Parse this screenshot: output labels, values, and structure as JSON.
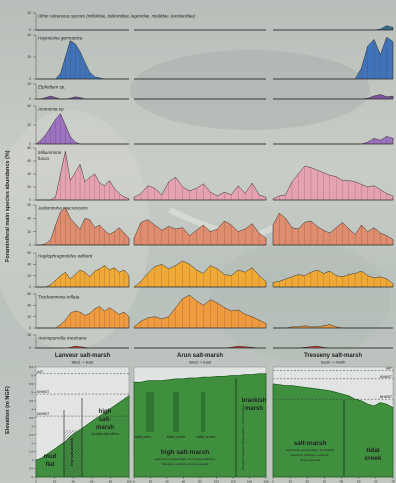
{
  "figure": {
    "y_axis_title": "Foraminiferal main species abundance (%)",
    "elevation_axis_title": "Elevation  (m  NGF)"
  },
  "chart_data": {
    "type": "area",
    "panels": [
      "lanveur",
      "arun",
      "tresseny"
    ],
    "species_rows": [
      {
        "id": "calcareous",
        "name": "Other calcareous species (miliolidae, buliminidae, lagenidae, rotaliidae, textulariidae)",
        "color": "#2e6b8f",
        "ticks": [
          "0",
          "20"
        ],
        "ymax": 20,
        "series": {
          "lanveur": [
            0,
            0,
            0,
            0,
            0,
            0,
            0,
            0,
            0,
            0,
            0,
            0,
            0,
            0,
            0,
            0,
            0,
            0,
            0,
            0
          ],
          "arun": [
            0,
            0,
            0,
            0,
            0,
            0,
            0,
            0,
            0,
            0,
            0,
            0,
            0,
            0,
            0,
            0,
            0,
            0,
            0,
            0
          ],
          "tresseny": [
            0,
            0,
            0,
            0,
            0,
            0,
            0,
            0,
            0,
            0,
            0,
            0,
            0,
            0,
            0,
            0,
            0,
            1,
            5,
            3
          ]
        }
      },
      {
        "id": "haynesina",
        "name": "Haynesina germanica",
        "color": "#3a6fb8",
        "ticks": [
          "0",
          "20",
          "40"
        ],
        "ymax": 40,
        "series": {
          "lanveur": [
            0,
            0,
            0,
            0,
            0,
            5,
            20,
            35,
            32,
            25,
            15,
            6,
            2,
            1,
            0,
            0,
            0,
            0,
            0,
            0
          ],
          "arun": [
            0,
            0,
            0,
            0,
            0,
            0,
            0,
            0,
            0,
            0,
            0,
            0,
            0,
            0,
            0,
            0,
            0,
            0,
            0,
            0
          ],
          "tresseny": [
            0,
            0,
            0,
            0,
            0,
            0,
            0,
            0,
            0,
            0,
            0,
            0,
            0,
            0,
            10,
            30,
            36,
            22,
            38,
            34
          ]
        }
      },
      {
        "id": "elphidium",
        "name": "Elphidium sp.",
        "color": "#7a4fa0",
        "ticks": [
          "0",
          "20"
        ],
        "ymax": 20,
        "series": {
          "lanveur": [
            0,
            0,
            2,
            4,
            2,
            0,
            0,
            1,
            3,
            2,
            0,
            0,
            0,
            0,
            0,
            0,
            0,
            0,
            0,
            0
          ],
          "arun": [
            0,
            0,
            0,
            0,
            0,
            0,
            0,
            0,
            0,
            0,
            0,
            0,
            0,
            0,
            0,
            0,
            0,
            0,
            0,
            0
          ],
          "tresseny": [
            0,
            0,
            0,
            0,
            0,
            0,
            0,
            0,
            0,
            0,
            0,
            0,
            0,
            0,
            0,
            1,
            4,
            6,
            3,
            4
          ]
        }
      },
      {
        "id": "ammonia",
        "name": "Ammonia sp.",
        "color": "#9a6fc0",
        "ticks": [
          "0",
          "20",
          "40"
        ],
        "ymax": 40,
        "series": {
          "lanveur": [
            0,
            4,
            10,
            18,
            26,
            32,
            20,
            8,
            2,
            0,
            0,
            0,
            0,
            0,
            0,
            0,
            0,
            0,
            0,
            0
          ],
          "arun": [
            0,
            0,
            0,
            0,
            0,
            0,
            0,
            0,
            0,
            0,
            0,
            0,
            0,
            0,
            0,
            0,
            0,
            0,
            0,
            0
          ],
          "tresseny": [
            0,
            0,
            0,
            0,
            0,
            0,
            0,
            0,
            0,
            0,
            0,
            0,
            0,
            0,
            0,
            2,
            6,
            4,
            8,
            6
          ]
        }
      },
      {
        "id": "miliammina",
        "name": "Miliammina fusca",
        "color": "#e7a0b0",
        "ticks": [
          "0",
          "20",
          "40",
          "60",
          "80"
        ],
        "ymax": 80,
        "series": {
          "lanveur": [
            0,
            0,
            0,
            0,
            5,
            40,
            75,
            30,
            42,
            55,
            28,
            35,
            40,
            26,
            22,
            30,
            18,
            10,
            5,
            2
          ],
          "arun": [
            4,
            10,
            22,
            18,
            8,
            28,
            35,
            20,
            14,
            18,
            25,
            12,
            6,
            12,
            8,
            22,
            10,
            26,
            8,
            4
          ],
          "tresseny": [
            2,
            6,
            8,
            28,
            40,
            52,
            50,
            46,
            42,
            38,
            36,
            30,
            30,
            28,
            24,
            20,
            22,
            16,
            10,
            6
          ]
        }
      },
      {
        "id": "jadammina",
        "name": "Jadammina macrescens",
        "color": "#e08a6a",
        "ticks": [
          "0",
          "20",
          "40",
          "60"
        ],
        "ymax": 60,
        "series": {
          "lanveur": [
            0,
            0,
            2,
            8,
            30,
            50,
            56,
            40,
            32,
            24,
            40,
            38,
            26,
            30,
            22,
            16,
            20,
            26,
            18,
            10
          ],
          "arun": [
            10,
            34,
            38,
            30,
            22,
            28,
            24,
            26,
            14,
            22,
            30,
            20,
            24,
            36,
            30,
            20,
            24,
            32,
            18,
            10
          ],
          "tresseny": [
            30,
            48,
            40,
            26,
            24,
            34,
            36,
            28,
            22,
            18,
            26,
            34,
            24,
            16,
            30,
            20,
            26,
            18,
            14,
            8
          ]
        }
      },
      {
        "id": "haplo",
        "name": "Haplophragmoides wilberti",
        "color": "#f2a830",
        "ticks": [
          "0",
          "20",
          "40",
          "60"
        ],
        "ymax": 60,
        "series": {
          "lanveur": [
            0,
            0,
            0,
            4,
            12,
            20,
            26,
            14,
            22,
            30,
            26,
            18,
            28,
            32,
            38,
            30,
            34,
            26,
            30,
            20
          ],
          "arun": [
            0,
            10,
            24,
            36,
            40,
            32,
            38,
            46,
            40,
            30,
            24,
            38,
            32,
            22,
            20,
            30,
            26,
            34,
            20,
            10
          ],
          "tresseny": [
            8,
            10,
            14,
            18,
            22,
            20,
            26,
            30,
            24,
            28,
            20,
            18,
            22,
            24,
            28,
            20,
            16,
            18,
            14,
            6
          ]
        }
      },
      {
        "id": "trochammina",
        "name": "Trochammina inflata",
        "color": "#f29a3a",
        "ticks": [
          "0",
          "20",
          "40",
          "60"
        ],
        "ymax": 60,
        "series": {
          "lanveur": [
            0,
            0,
            0,
            0,
            0,
            6,
            14,
            26,
            30,
            28,
            22,
            26,
            34,
            38,
            30,
            36,
            30,
            24,
            28,
            20
          ],
          "arun": [
            2,
            12,
            18,
            20,
            16,
            20,
            36,
            52,
            58,
            48,
            40,
            50,
            44,
            36,
            30,
            32,
            24,
            20,
            14,
            8
          ],
          "tresseny": [
            0,
            0,
            0,
            2,
            2,
            4,
            2,
            2,
            4,
            6,
            2,
            0,
            0,
            0,
            0,
            0,
            0,
            0,
            0,
            0
          ]
        }
      },
      {
        "id": "arenoparrella",
        "name": "Arenoparrella mexicana",
        "color": "#d23a36",
        "ticks": [
          "0",
          "20"
        ],
        "ymax": 20,
        "series": {
          "lanveur": [
            0,
            0,
            0,
            0,
            0,
            0,
            0,
            1,
            3,
            2,
            1,
            0,
            0,
            0,
            0,
            0,
            0,
            0,
            0,
            0
          ],
          "arun": [
            0,
            0,
            0,
            0,
            0,
            0,
            0,
            0,
            0,
            0,
            0,
            0,
            0,
            0,
            1,
            3,
            2,
            1,
            0,
            0
          ],
          "tresseny": [
            0,
            0,
            0,
            0,
            0,
            1,
            2,
            3,
            1,
            0,
            0,
            0,
            0,
            0,
            0,
            0,
            0,
            0,
            0,
            0
          ]
        }
      }
    ],
    "sites": [
      {
        "id": "lanveur",
        "title": "Lanveur salt-marsh",
        "orientation": "West -> East",
        "hat": "HAT",
        "mhwst": "MHWST",
        "mhwnt": "MHWNT",
        "ylim": [
          0,
          6.5
        ],
        "yticks": [
          "0",
          "0.5",
          "1",
          "1.5",
          "2",
          "2.5",
          "3",
          "3.5",
          "4",
          "4.5",
          "5",
          "5.5",
          "6",
          "6.5"
        ],
        "xticks": [
          "0",
          "20",
          "40",
          "60",
          "80",
          "100"
        ],
        "elevation": [
          1.0,
          1.1,
          1.3,
          1.5,
          1.7,
          1.9,
          2.1,
          2.4,
          2.6,
          2.8,
          3.0,
          3.2,
          3.4,
          3.6,
          3.8,
          4.0,
          4.2,
          4.4,
          4.6,
          4.8
        ],
        "zones": [
          {
            "label": "mud flat",
            "species": ""
          },
          {
            "label": "low salt-marsh",
            "species": "Spartina alterniflora"
          },
          {
            "label": "high salt-marsh",
            "species": "Spartina alterniflora"
          }
        ]
      },
      {
        "id": "arun",
        "title": "Arun salt-marsh",
        "orientation": "West -> East",
        "ylim": [
          0,
          6.5
        ],
        "xticks": [
          "0",
          "20",
          "40",
          "60",
          "80",
          "100",
          "120",
          "140",
          "160"
        ],
        "elevation": [
          5.6,
          5.6,
          5.7,
          5.7,
          5.7,
          5.75,
          5.8,
          5.8,
          5.85,
          5.85,
          5.9,
          5.9,
          5.95,
          5.95,
          6.0,
          6.0,
          6.05,
          6.05,
          6.1,
          6.1
        ],
        "zones": [
          {
            "label": "salt-pans",
            "species": ""
          },
          {
            "label": "tidal creek",
            "species": ""
          },
          {
            "label": "tidal creek",
            "species": ""
          },
          {
            "label": "high salt-marsh",
            "species": "Halimione portulacoides, Puccinellia Maritima, Plantago maritima, Juncus gerardii"
          },
          {
            "label": "brackish marsh",
            "species": "Phragmites australis, Elytrigia atherica, Juncus maritimus"
          }
        ]
      },
      {
        "id": "tresseny",
        "title": "Tresseny salt-marsh",
        "orientation": "South -> North",
        "hat": "HAT",
        "mhwst": "MHWST",
        "mhwnt": "MHWNT",
        "ylim": [
          0,
          6.5
        ],
        "xticks": [
          "0",
          "10",
          "20",
          "30",
          "40",
          "50",
          "60",
          "70"
        ],
        "elevation": [
          5.5,
          5.45,
          5.4,
          5.4,
          5.35,
          5.3,
          5.25,
          5.2,
          5.15,
          5.1,
          5.0,
          4.9,
          4.8,
          4.6,
          4.5,
          4.3,
          4.2,
          4.4,
          4.3,
          4.1
        ],
        "zones": [
          {
            "label": "salt-marsh",
            "species": "Halimione portulacoides, Puccinellia Maritima, Plantago maritima, Juncus gerardii"
          },
          {
            "label": "tidal creek",
            "species": ""
          }
        ]
      }
    ]
  },
  "colors": {
    "elev_fill": "#3f8f3e",
    "elev_line": "#1e5a1e",
    "hatch": "#7a2a2a"
  }
}
